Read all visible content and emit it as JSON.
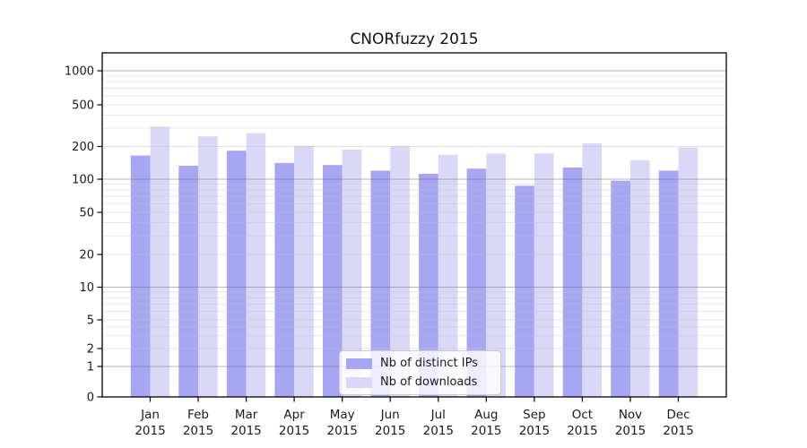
{
  "figure": {
    "background": "#ffffff"
  },
  "chart_data": {
    "type": "bar",
    "title": "CNORfuzzy 2015",
    "xlabel": "",
    "ylabel": "",
    "yscale": "symlog",
    "ylim": [
      0,
      1500
    ],
    "grid": "horizontal major and log-minor gridlines, drawn over bars",
    "legend_position": "inside plot, lower center",
    "y_ticks": [
      0,
      1,
      2,
      5,
      10,
      20,
      50,
      100,
      200,
      500,
      1000
    ],
    "categories": [
      "Jan",
      "Feb",
      "Mar",
      "Apr",
      "May",
      "Jun",
      "Jul",
      "Aug",
      "Sep",
      "Oct",
      "Nov",
      "Dec"
    ],
    "category_year": "2015",
    "series": [
      {
        "name": "Nb of distinct IPs",
        "color": "#a6a6f2",
        "values": [
          165,
          133,
          183,
          141,
          135,
          120,
          112,
          125,
          87,
          128,
          97,
          120
        ]
      },
      {
        "name": "Nb of downloads",
        "color": "#d9d9f7",
        "values": [
          310,
          250,
          268,
          202,
          187,
          201,
          168,
          172,
          173,
          214,
          149,
          196
        ]
      }
    ],
    "colors": {
      "grid_major": "#6e6e6e",
      "grid_minor": "#c2c2c2",
      "axis": "#000000",
      "tick_text": "#1a1a1a"
    }
  }
}
